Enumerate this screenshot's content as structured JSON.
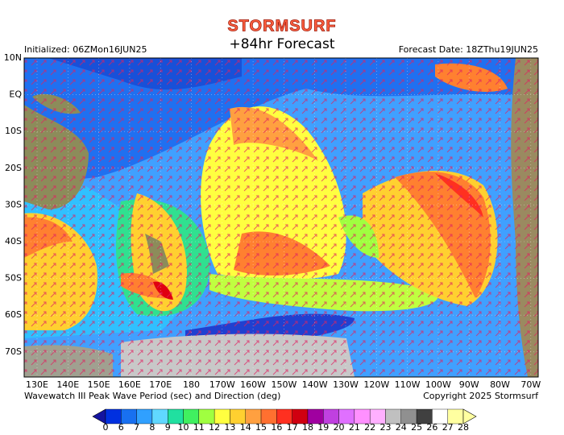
{
  "header": {
    "brand": "STORMSURF",
    "title": "+84hr Forecast",
    "initialized": "Initialized: 06ZMon16JUN25",
    "forecast_date": "Forecast Date: 18ZThu19JUN25"
  },
  "map": {
    "latitude_labels": [
      "10N",
      "EQ",
      "10S",
      "20S",
      "30S",
      "40S",
      "50S",
      "60S",
      "70S"
    ],
    "longitude_labels": [
      "130E",
      "140E",
      "150E",
      "160E",
      "170E",
      "180",
      "170W",
      "160W",
      "150W",
      "140W",
      "130W",
      "120W",
      "110W",
      "100W",
      "90W",
      "80W",
      "70W"
    ]
  },
  "footer": {
    "caption": "Wavewatch III Peak Wave Period (sec) and Direction (deg)",
    "copyright": "Copyright 2025 Stormsurf"
  },
  "colorbar": {
    "labels": [
      "0",
      "6",
      "7",
      "8",
      "9",
      "10",
      "11",
      "12",
      "13",
      "14",
      "15",
      "16",
      "17",
      "18",
      "19",
      "20",
      "21",
      "22",
      "23",
      "24",
      "25",
      "26",
      "27",
      "28"
    ],
    "colors": [
      "#1414a0",
      "#0030e0",
      "#1870f0",
      "#30a0ff",
      "#60d8ff",
      "#20e0a0",
      "#40f060",
      "#a0ff40",
      "#ffff40",
      "#ffd030",
      "#ffa040",
      "#ff7030",
      "#ff3020",
      "#d00010",
      "#a000a0",
      "#c040e0",
      "#e070ff",
      "#ff90ff",
      "#ffb0ff",
      "#c0c0c0",
      "#909090",
      "#404040",
      "#ffffff",
      "#ffffa0"
    ]
  }
}
